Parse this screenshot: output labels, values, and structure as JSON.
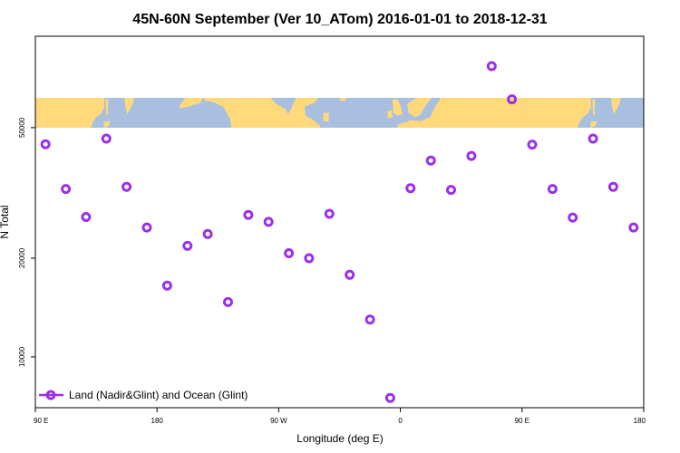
{
  "chart_data": {
    "type": "scatter",
    "title": "45N-60N September (Ver 10_ATom)   2016-01-01 to 2018-12-31",
    "xlabel": "Longitude (deg E)",
    "ylabel": "N Total",
    "x_tick_labels": [
      "90 E",
      "180",
      "90 W",
      "0",
      "90 E",
      "180"
    ],
    "x_tick_values": [
      90,
      180,
      270,
      360,
      450,
      540
    ],
    "xlim": [
      90,
      540
    ],
    "y_scale": "log",
    "y_tick_labels": [
      "10000",
      "20000",
      "50000"
    ],
    "y_tick_values": [
      10000,
      20000,
      50000
    ],
    "ylim": [
      7000,
      95000
    ],
    "map_strip": {
      "lat_range": "45N-60N",
      "lon_range": [
        90,
        540
      ],
      "land_color": "#FFD97A",
      "ocean_color": "#A9BFE0"
    },
    "legend": {
      "label": "Land (Nadir&Glint) and Ocean (Glint)",
      "position": "bottom-left"
    },
    "series": [
      {
        "name": "Land (Nadir&Glint) and Ocean (Glint)",
        "color": "#9B30E8",
        "marker": "open-circle",
        "points": [
          [
            97.5,
            44500
          ],
          [
            112.5,
            32500
          ],
          [
            127.5,
            26700
          ],
          [
            142.5,
            46300
          ],
          [
            157.5,
            33000
          ],
          [
            172.5,
            24800
          ],
          [
            187.5,
            16500
          ],
          [
            202.5,
            21800
          ],
          [
            217.5,
            23700
          ],
          [
            232.5,
            14700
          ],
          [
            247.5,
            27100
          ],
          [
            262.5,
            25800
          ],
          [
            277.5,
            20700
          ],
          [
            292.5,
            20000
          ],
          [
            307.5,
            27300
          ],
          [
            322.5,
            17800
          ],
          [
            337.5,
            13000
          ],
          [
            352.5,
            7500
          ],
          [
            367.5,
            32700
          ],
          [
            382.5,
            39700
          ],
          [
            397.5,
            32300
          ],
          [
            412.5,
            41000
          ],
          [
            427.5,
            77000
          ],
          [
            442.5,
            61000
          ],
          [
            457.5,
            44400
          ],
          [
            472.5,
            32500
          ],
          [
            487.5,
            26600
          ],
          [
            502.5,
            46300
          ],
          [
            517.5,
            33000
          ],
          [
            532.5,
            24800
          ]
        ]
      }
    ]
  }
}
